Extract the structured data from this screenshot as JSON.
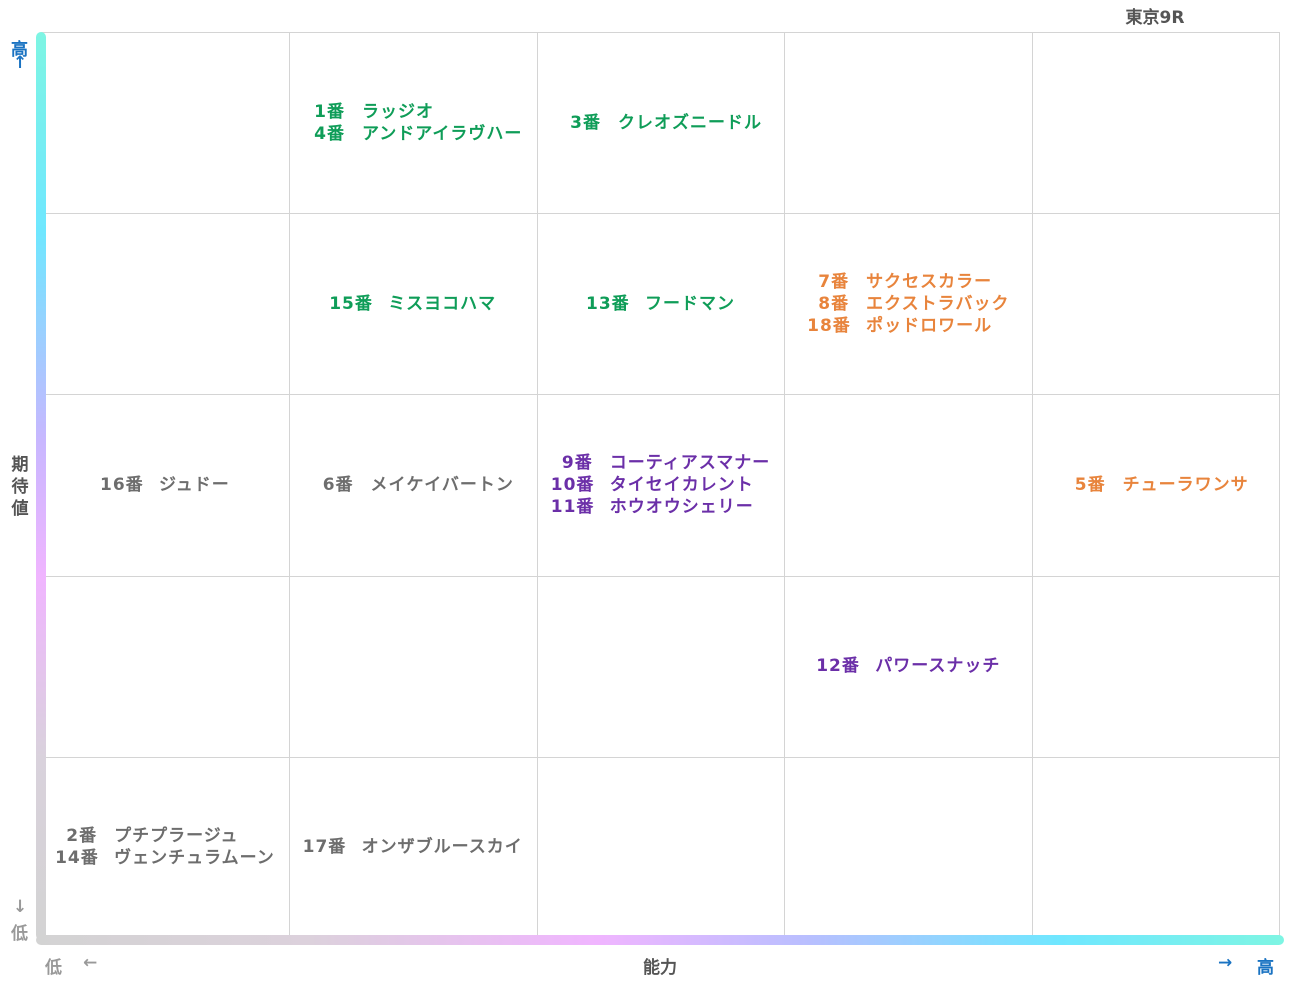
{
  "race": "東京9R",
  "axes": {
    "y_label": "期待値",
    "x_label": "能力",
    "y_high": "高",
    "y_high_arrow": "↑",
    "y_low": "低",
    "y_low_arrow": "↓",
    "x_low": "低",
    "x_low_arrow": "←",
    "x_high": "高",
    "x_high_arrow": "→"
  },
  "colors": {
    "green": "#0f9d58",
    "orange": "#e8843c",
    "purple": "#6b2fa8",
    "gray": "#6d6d6d"
  },
  "chart_data": {
    "type": "table",
    "columns": 5,
    "rows": 5,
    "x_axis": "能力",
    "y_axis": "期待値",
    "cells": [
      {
        "col": 1,
        "row": 0,
        "color": "green",
        "entries": [
          {
            "num": "1番",
            "name": "ラッジオ"
          },
          {
            "num": "4番",
            "name": "アンドアイラヴハー"
          }
        ]
      },
      {
        "col": 2,
        "row": 0,
        "color": "green",
        "entries": [
          {
            "num": "3番",
            "name": "クレオズニードル"
          }
        ]
      },
      {
        "col": 1,
        "row": 1,
        "color": "green",
        "entries": [
          {
            "num": "15番",
            "name": "ミスヨコハマ"
          }
        ]
      },
      {
        "col": 2,
        "row": 1,
        "color": "green",
        "entries": [
          {
            "num": "13番",
            "name": "フードマン"
          }
        ]
      },
      {
        "col": 3,
        "row": 1,
        "color": "orange",
        "entries": [
          {
            "num": "7番",
            "name": "サクセスカラー"
          },
          {
            "num": "8番",
            "name": "エクストラバック"
          },
          {
            "num": "18番",
            "name": "ポッドロワール"
          }
        ]
      },
      {
        "col": 0,
        "row": 2,
        "color": "gray",
        "entries": [
          {
            "num": "16番",
            "name": "ジュドー"
          }
        ]
      },
      {
        "col": 1,
        "row": 2,
        "color": "gray",
        "entries": [
          {
            "num": "6番",
            "name": "メイケイバートン"
          }
        ]
      },
      {
        "col": 2,
        "row": 2,
        "color": "purple",
        "entries": [
          {
            "num": "9番",
            "name": "コーティアスマナー"
          },
          {
            "num": "10番",
            "name": "タイセイカレント"
          },
          {
            "num": "11番",
            "name": "ホウオウシェリー"
          }
        ]
      },
      {
        "col": 4,
        "row": 2,
        "color": "orange",
        "entries": [
          {
            "num": "5番",
            "name": "チューラワンサ"
          }
        ]
      },
      {
        "col": 3,
        "row": 3,
        "color": "purple",
        "entries": [
          {
            "num": "12番",
            "name": "パワースナッチ"
          }
        ]
      },
      {
        "col": 0,
        "row": 4,
        "color": "gray",
        "entries": [
          {
            "num": "2番",
            "name": "プチプラージュ"
          },
          {
            "num": "14番",
            "name": "ヴェンチュラムーン"
          }
        ]
      },
      {
        "col": 1,
        "row": 4,
        "color": "gray",
        "entries": [
          {
            "num": "17番",
            "name": "オンザブルースカイ"
          }
        ]
      }
    ]
  }
}
